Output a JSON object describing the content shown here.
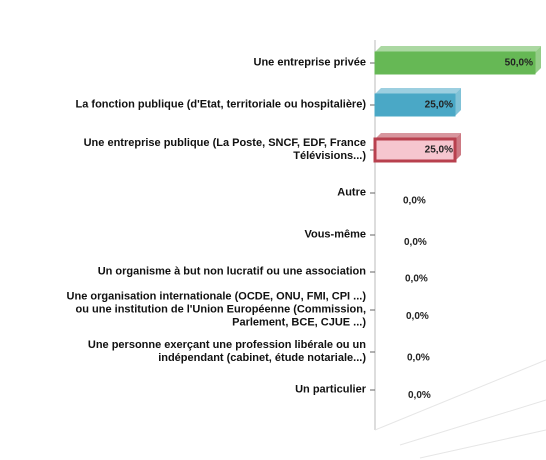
{
  "chart_data": {
    "type": "bar",
    "orientation": "horizontal",
    "categories": [
      "Une entreprise privée",
      "La fonction publique (d'Etat, territoriale ou hospitalière)",
      "Une entreprise publique (La Poste, SNCF, EDF, France\nTélévisions...)",
      "Autre",
      "Vous-même",
      "Un organisme à but non lucratif ou une association",
      "Une organisation internationale (OCDE, ONU, FMI, CPI ...)\nou une institution de l'Union Européenne (Commission,\nParlement, BCE, CJUE ...)",
      "Une personne exerçant une profession libérale ou un\nindépendant (cabinet, étude notariale...)",
      "Un particulier"
    ],
    "values": [
      50,
      25,
      25,
      0,
      0,
      0,
      0,
      0,
      0
    ],
    "value_labels": [
      "50,0%",
      "25,0%",
      "25,0%",
      "0,0%",
      "0,0%",
      "0,0%",
      "0,0%",
      "0,0%",
      "0,0%"
    ],
    "colors": [
      "#66b855",
      "#4aa8c6",
      "#b8404e",
      "#888888",
      "#888888",
      "#888888",
      "#888888",
      "#888888",
      "#888888"
    ],
    "xlim": [
      0,
      50
    ]
  }
}
